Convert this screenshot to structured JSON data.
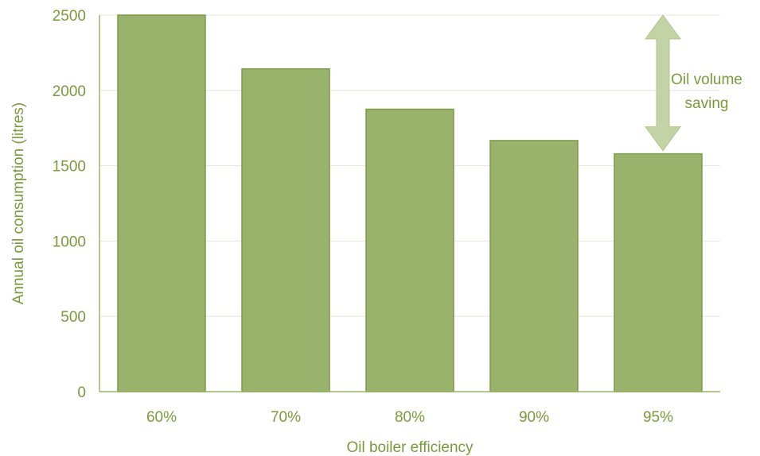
{
  "chart_data": {
    "type": "bar",
    "categories": [
      "60%",
      "70%",
      "80%",
      "90%",
      "95%"
    ],
    "values": [
      2500,
      2143,
      1875,
      1667,
      1579
    ],
    "xlabel": "Oil boiler efficiency",
    "ylabel": "Annual oil consumption (litres)",
    "ylim": [
      0,
      2500
    ],
    "yticks": [
      0,
      500,
      1000,
      1500,
      2000,
      2500
    ],
    "grid": true,
    "annotation": {
      "line1": "Oil volume",
      "line2": "saving",
      "from_value": 2500,
      "to_value": 1579
    },
    "colors": {
      "bar": "#9ab36c",
      "bar_border": "#7c9a45",
      "text": "#7a9a3c",
      "arrow": "#c3d3a5",
      "grid": "#e2e6d8",
      "axis": "#9ab36c"
    }
  }
}
